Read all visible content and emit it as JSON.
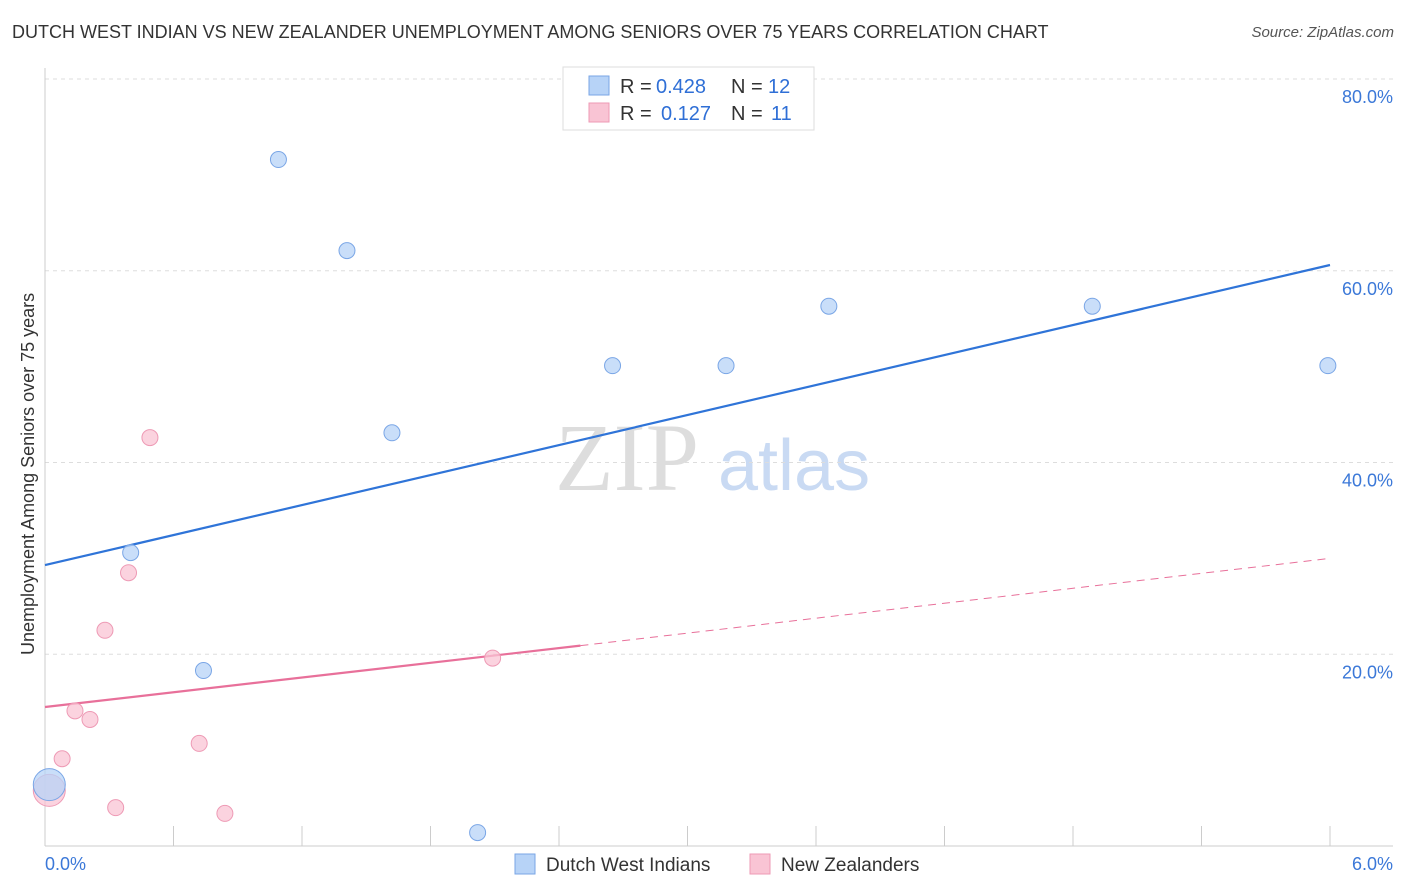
{
  "title": "DUTCH WEST INDIAN VS NEW ZEALANDER UNEMPLOYMENT AMONG SENIORS OVER 75 YEARS CORRELATION CHART",
  "source": "Source: ZipAtlas.com",
  "watermark": "ZIPatlas",
  "colors": {
    "blue": "#2f74d8",
    "blue_fill": "#b7d3f7",
    "pink": "#e8709a",
    "pink_fill": "#f9c4d4"
  },
  "chart_data": {
    "type": "scatter",
    "title": "DUTCH WEST INDIAN VS NEW ZEALANDER UNEMPLOYMENT AMONG SENIORS OVER 75 YEARS CORRELATION CHART",
    "xlabel": "",
    "ylabel": "Unemployment Among Seniors over 75 years",
    "xlim": [
      0,
      6
    ],
    "ylim": [
      0,
      80
    ],
    "x_tick_labels": [
      "0.0%",
      "6.0%"
    ],
    "y_ticks": [
      20,
      40,
      60,
      80
    ],
    "y_tick_labels": [
      "20.0%",
      "40.0%",
      "60.0%",
      "80.0%"
    ],
    "grid": true,
    "legend_placement": "top-center",
    "legend": [
      {
        "r_label": "R =",
        "r": "0.428",
        "n_label": "N =",
        "n": "12"
      },
      {
        "r_label": "R =",
        "r": "0.127",
        "n_label": "N =",
        "n": "11"
      }
    ],
    "series": [
      {
        "name": "Dutch West Indians",
        "points": [
          [
            1.09,
            71.6
          ],
          [
            1.41,
            62.1
          ],
          [
            1.62,
            43.1
          ],
          [
            2.65,
            50.1
          ],
          [
            3.18,
            50.1
          ],
          [
            3.66,
            56.3
          ],
          [
            4.89,
            56.3
          ],
          [
            5.99,
            50.1
          ],
          [
            0.4,
            30.6
          ],
          [
            0.74,
            18.3
          ],
          [
            2.02,
            1.4
          ],
          [
            0.02,
            6.4,
            "large"
          ]
        ],
        "trend": {
          "x": [
            0,
            6
          ],
          "y": [
            29.3,
            60.6
          ],
          "style": "solid"
        }
      },
      {
        "name": "New Zealanders",
        "points": [
          [
            0.49,
            42.6
          ],
          [
            0.39,
            28.5
          ],
          [
            0.28,
            22.5
          ],
          [
            2.09,
            19.6
          ],
          [
            0.14,
            14.1
          ],
          [
            0.21,
            13.2
          ],
          [
            0.72,
            10.7
          ],
          [
            0.08,
            9.1
          ],
          [
            0.33,
            4.0
          ],
          [
            0.84,
            3.4
          ],
          [
            0.02,
            5.8,
            "large"
          ]
        ],
        "trend": {
          "x": [
            0,
            2.5,
            6
          ],
          "y": [
            14.5,
            20.9,
            30.0
          ],
          "style": "solid-then-dashed"
        }
      }
    ]
  }
}
